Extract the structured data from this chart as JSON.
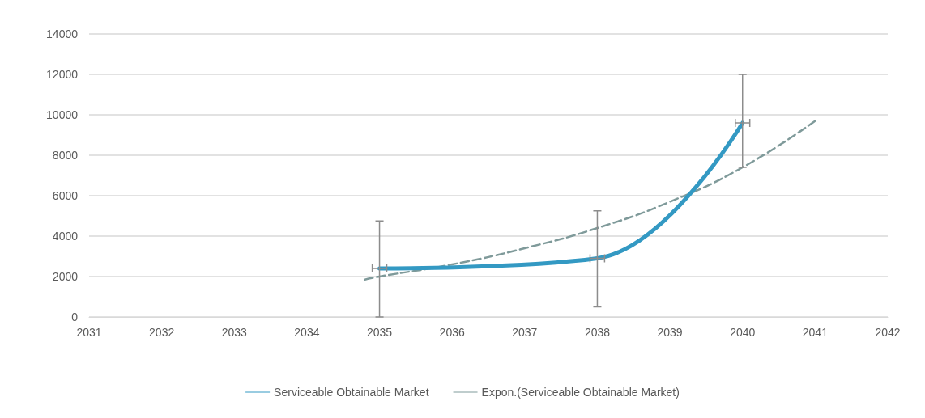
{
  "chart_data": {
    "type": "line",
    "xlim": [
      2031,
      2042
    ],
    "xticks": [
      2031,
      2032,
      2033,
      2034,
      2035,
      2036,
      2037,
      2038,
      2039,
      2040,
      2041,
      2042
    ],
    "ylim": [
      0,
      14000
    ],
    "yticks": [
      0,
      2000,
      4000,
      6000,
      8000,
      10000,
      12000,
      14000
    ],
    "grid": "y",
    "legend": "bottom",
    "marker": "none",
    "series": [
      {
        "name": "Serviceable Obtainable Market",
        "color": "#3399c3",
        "x": [
          2035,
          2038,
          2040
        ],
        "values": [
          2400,
          2900,
          9600
        ],
        "errors": [
          [
            0,
            4750
          ],
          [
            500,
            5250
          ],
          [
            7400,
            12000
          ]
        ],
        "xerrors": [
          0.1,
          0.1,
          0.1
        ],
        "line_style": "solid"
      },
      {
        "name": "Expon.(Serviceable Obtainable Market)",
        "color": "#7f9a9a",
        "x": [
          2034.8,
          2035,
          2036,
          2037,
          2038,
          2039,
          2040,
          2041
        ],
        "values": [
          1850,
          2000,
          2600,
          3400,
          4400,
          5700,
          7400,
          9700
        ],
        "line_style": "dashed"
      }
    ]
  }
}
